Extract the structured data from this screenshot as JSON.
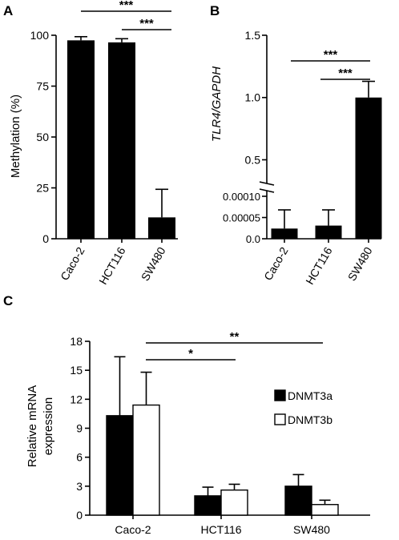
{
  "colors": {
    "ink": "#000000",
    "paper": "#ffffff"
  },
  "chart_data": [
    {
      "panel": "A",
      "type": "bar",
      "title": "",
      "xlabel": "",
      "ylabel": "Methylation (%)",
      "ylim": [
        0,
        100
      ],
      "yticks": [
        "0",
        "25",
        "50",
        "75",
        "100"
      ],
      "categories": [
        "Caco-2",
        "HCT116",
        "SW480"
      ],
      "series": [
        {
          "values": [
            97.5,
            96.5,
            10.5
          ],
          "errors": [
            1.8,
            1.8,
            13.8
          ]
        }
      ],
      "annotations": [
        {
          "from": "Caco-2",
          "to": "SW480",
          "label": "***"
        },
        {
          "from": "HCT116",
          "to": "SW480",
          "label": "***"
        }
      ]
    },
    {
      "panel": "B",
      "type": "bar",
      "title": "",
      "xlabel": "",
      "ylabel": "TLR4/GAPDH",
      "axis_break": true,
      "lower_segment": {
        "ylim": [
          0,
          0.0001
        ],
        "yticks": [
          "0.0",
          "0.00005",
          "0.00010"
        ]
      },
      "upper_segment": {
        "ylim": [
          0.4,
          1.5
        ],
        "yticks": [
          "0.5",
          "1.0",
          "1.5"
        ]
      },
      "categories": [
        "Caco-2",
        "HCT116",
        "SW480"
      ],
      "series": [
        {
          "values": [
            2.4e-05,
            3.1e-05,
            1.0
          ],
          "errors": [
            4.4e-05,
            3.7e-05,
            0.13
          ]
        }
      ],
      "annotations": [
        {
          "from": "Caco-2",
          "to": "SW480",
          "label": "***"
        },
        {
          "from": "HCT116",
          "to": "SW480",
          "label": "***"
        }
      ]
    },
    {
      "panel": "C",
      "type": "bar",
      "title": "",
      "xlabel": "",
      "ylabel": "Relative mRNA expression",
      "ylabel_lines": [
        "Relative mRNA",
        "expression"
      ],
      "ylim": [
        0,
        18
      ],
      "yticks": [
        "0",
        "3",
        "6",
        "9",
        "12",
        "15",
        "18"
      ],
      "categories": [
        "Caco-2",
        "HCT116",
        "SW480"
      ],
      "legend_position": "right",
      "series": [
        {
          "name": "DNMT3a",
          "color": "#000000",
          "values": [
            10.3,
            2.0,
            3.0
          ],
          "errors": [
            6.1,
            0.9,
            1.2
          ]
        },
        {
          "name": "DNMT3b",
          "color": "#ffffff",
          "values": [
            11.4,
            2.6,
            1.1
          ],
          "errors": [
            3.4,
            0.6,
            0.45
          ]
        }
      ],
      "annotations": [
        {
          "from": "Caco-2",
          "to": "HCT116",
          "label": "*"
        },
        {
          "from": "Caco-2",
          "to": "SW480",
          "label": "**"
        }
      ]
    }
  ]
}
